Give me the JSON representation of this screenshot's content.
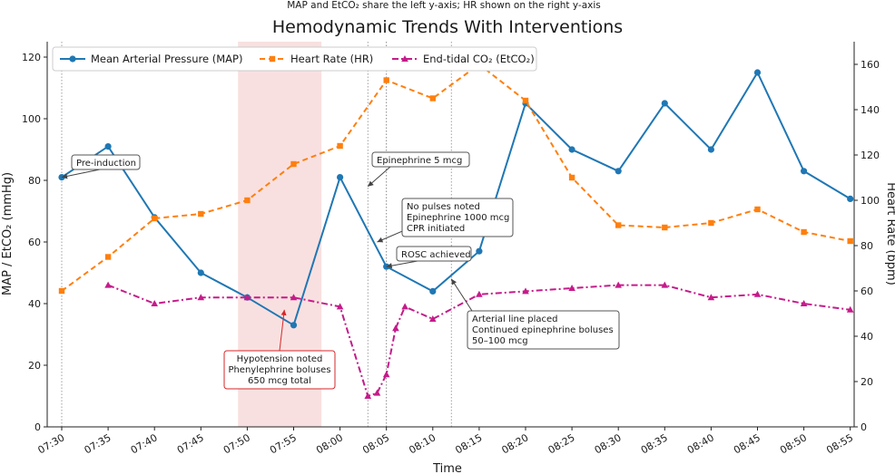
{
  "chart_data": {
    "type": "line",
    "subtitle": "MAP and EtCO₂ share the left y-axis; HR shown on the right y-axis",
    "title": "Hemodynamic Trends With Interventions",
    "xlabel": "Time",
    "ylabel_left": "MAP / EtCO₂ (mmHg)",
    "ylabel_right": "Heart Rate (bpm)",
    "x_ticks": [
      "07:30",
      "07:35",
      "07:40",
      "07:45",
      "07:50",
      "07:55",
      "08:00",
      "08:05",
      "08:10",
      "08:15",
      "08:20",
      "08:25",
      "08:30",
      "08:35",
      "08:40",
      "08:45",
      "08:50",
      "08:55"
    ],
    "ylim_left": [
      0,
      125
    ],
    "yticks_left": [
      0,
      20,
      40,
      60,
      80,
      100,
      120
    ],
    "ylim_right": [
      0,
      170
    ],
    "yticks_right": [
      0,
      20,
      40,
      60,
      80,
      100,
      120,
      140,
      160
    ],
    "grid": false,
    "legend_position": "top-left",
    "shaded_region": {
      "x": [
        "07:49",
        "07:58"
      ],
      "color": "#f4c7c7"
    },
    "vlines": [
      "07:30",
      "08:03",
      "08:05",
      "08:12",
      "08:05"
    ],
    "series": [
      {
        "name": "Mean Arterial Pressure (MAP)",
        "axis": "left",
        "color": "#1f77b4",
        "marker": "circle",
        "style": "solid",
        "x": [
          "07:30",
          "07:35",
          "07:40",
          "07:45",
          "07:50",
          "07:55",
          "08:00",
          "08:05",
          "08:10",
          "08:15",
          "08:20",
          "08:25",
          "08:30",
          "08:35",
          "08:40",
          "08:45",
          "08:50",
          "08:55"
        ],
        "values": [
          81,
          91,
          68,
          50,
          42,
          33,
          81,
          52,
          44,
          57,
          105,
          90,
          83,
          105,
          90,
          115,
          83,
          74
        ]
      },
      {
        "name": "Heart Rate (HR)",
        "axis": "right",
        "color": "#ff7f0e",
        "marker": "square",
        "style": "dashed",
        "x": [
          "07:30",
          "07:35",
          "07:40",
          "07:45",
          "07:50",
          "07:55",
          "08:00",
          "08:05",
          "08:10",
          "08:15",
          "08:20",
          "08:25",
          "08:30",
          "08:35",
          "08:40",
          "08:45",
          "08:50",
          "08:55"
        ],
        "values": [
          60,
          75,
          92,
          94,
          100,
          116,
          124,
          153,
          145,
          160,
          144,
          110,
          89,
          88,
          90,
          96,
          86,
          82
        ]
      },
      {
        "name": "End-tidal CO₂ (EtCO₂)",
        "axis": "left",
        "color": "#c51b8a",
        "marker": "triangle",
        "style": "dashdot",
        "x": [
          "07:35",
          "07:40",
          "07:45",
          "07:50",
          "07:55",
          "08:00",
          "08:03",
          "08:04",
          "08:05",
          "08:06",
          "08:07",
          "08:10",
          "08:15",
          "08:20",
          "08:25",
          "08:30",
          "08:35",
          "08:40",
          "08:45",
          "08:50",
          "08:55"
        ],
        "values": [
          46,
          40,
          42,
          42,
          42,
          39,
          10,
          11,
          17,
          32,
          39,
          35,
          43,
          44,
          45,
          46,
          46,
          42,
          43,
          40,
          38
        ]
      }
    ],
    "annotations": [
      {
        "lines": [
          "Pre-induction"
        ],
        "target": [
          "07:30",
          81
        ],
        "style": "plain"
      },
      {
        "lines": [
          "Hypotension noted",
          "Phenylephrine boluses",
          "650 mcg total"
        ],
        "target": [
          "07:54",
          38
        ],
        "style": "red"
      },
      {
        "lines": [
          "Epinephrine 5 mcg"
        ],
        "target": [
          "08:03",
          78
        ],
        "style": "plain"
      },
      {
        "lines": [
          "No pulses noted",
          "Epinephrine 1000 mcg",
          "CPR initiated"
        ],
        "target": [
          "08:04",
          60
        ],
        "style": "plain"
      },
      {
        "lines": [
          "ROSC achieved"
        ],
        "target": [
          "08:05",
          52
        ],
        "style": "plain"
      },
      {
        "lines": [
          "Arterial line placed",
          "Continued epinephrine boluses",
          "50–100 mcg"
        ],
        "target": [
          "08:12",
          48
        ],
        "style": "plain"
      }
    ]
  }
}
